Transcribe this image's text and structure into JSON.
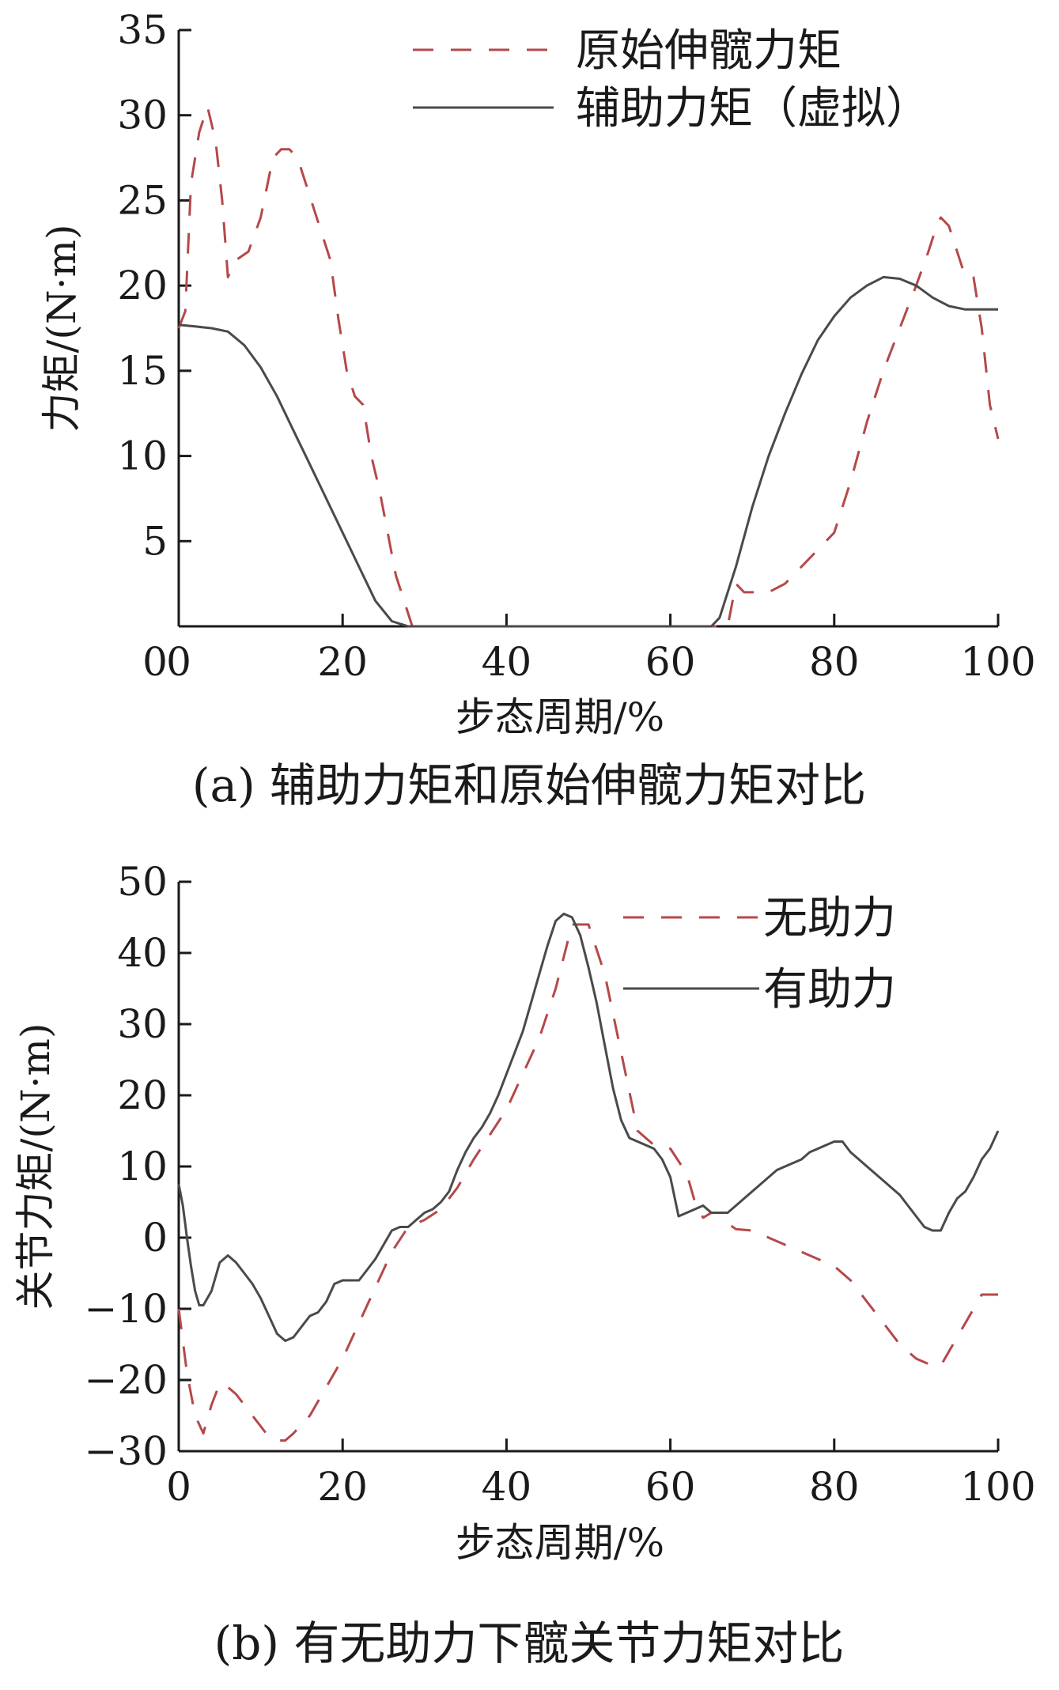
{
  "colors": {
    "dashed_series": "#b5484a",
    "solid_series": "#4a4a4a",
    "axis": "#1a1a1a"
  },
  "chart_data": [
    {
      "type": "line",
      "caption": "(a)  辅助力矩和原始伸髋力矩对比",
      "xlabel": "步态周期/%",
      "ylabel": "力矩/(N·m)",
      "xlim": [
        0,
        100
      ],
      "ylim": [
        0,
        35
      ],
      "xticks": [
        0,
        20,
        40,
        60,
        80,
        100
      ],
      "yticks": [
        5,
        10,
        15,
        20,
        25,
        30,
        35
      ],
      "legend": "top-right",
      "series": [
        {
          "name": "原始伸髋力矩",
          "style": "dashed",
          "x": [
            0,
            0.8,
            1.5,
            2.5,
            3.5,
            4.5,
            5.3,
            6,
            7,
            8.5,
            10,
            11.5,
            12.5,
            13.5,
            14.5,
            15.5,
            16.5,
            17.5,
            18.5,
            19.5,
            20.5,
            21.5,
            22.5,
            23.5,
            24.5,
            25.5,
            26.5,
            27.5,
            28.5,
            30,
            40,
            50,
            60,
            66,
            67,
            68,
            69,
            70,
            71,
            72,
            74,
            76,
            78,
            80,
            82,
            84,
            86,
            88,
            90,
            91.5,
            92.5,
            93,
            94,
            95,
            96,
            97,
            98,
            99,
            100
          ],
          "y": [
            17.5,
            18.5,
            26,
            29,
            30.5,
            28.5,
            25,
            20.5,
            21.5,
            22,
            24,
            27.5,
            28,
            28,
            27.5,
            26,
            24.5,
            23,
            21.5,
            18,
            15,
            13.5,
            13,
            10,
            8,
            5.5,
            3,
            1.5,
            0,
            0,
            0,
            0,
            0,
            0,
            0,
            2.5,
            2,
            2,
            2,
            2,
            2.5,
            3.5,
            4.5,
            5.5,
            8.5,
            12,
            15,
            17.5,
            20,
            22,
            23.5,
            24,
            23.5,
            22,
            20.5,
            20.5,
            17.5,
            13,
            11
          ]
        },
        {
          "name": "辅助力矩（虚拟）",
          "style": "solid",
          "x": [
            0,
            2,
            4,
            6,
            8,
            10,
            12,
            14,
            16,
            18,
            20,
            22,
            24,
            26,
            28,
            28.5,
            30,
            40,
            50,
            60,
            65,
            66,
            68,
            70,
            72,
            74,
            76,
            78,
            80,
            82,
            84,
            86,
            88,
            90,
            92,
            94,
            96,
            98,
            100
          ],
          "y": [
            17.7,
            17.6,
            17.5,
            17.3,
            16.5,
            15.2,
            13.5,
            11.5,
            9.5,
            7.5,
            5.5,
            3.5,
            1.5,
            0.3,
            0,
            0,
            0,
            0,
            0,
            0,
            0,
            0.5,
            3.5,
            7,
            10,
            12.5,
            14.8,
            16.8,
            18.2,
            19.3,
            20,
            20.5,
            20.4,
            20,
            19.3,
            18.8,
            18.6,
            18.6,
            18.6
          ]
        }
      ]
    },
    {
      "type": "line",
      "caption": "(b)  有无助力下髋关节力矩对比",
      "xlabel": "步态周期/%",
      "ylabel": "关节力矩/(N·m)",
      "xlim": [
        0,
        100
      ],
      "ylim": [
        -30,
        50
      ],
      "xticks": [
        0,
        20,
        40,
        60,
        80,
        100
      ],
      "yticks": [
        -30,
        -20,
        -10,
        0,
        10,
        20,
        30,
        40,
        50
      ],
      "legend": "top-right",
      "series": [
        {
          "name": "无助力",
          "style": "dashed",
          "x": [
            0,
            1,
            2,
            3,
            4,
            5,
            6,
            7,
            8,
            9,
            10,
            11,
            12,
            13,
            14,
            16,
            18,
            20,
            22,
            24,
            26,
            28,
            30,
            32,
            34,
            36,
            38,
            40,
            42,
            44,
            46,
            48,
            50,
            52,
            54,
            56,
            58,
            60,
            62,
            63,
            64,
            65,
            66,
            67,
            68,
            70,
            72,
            74,
            76,
            78,
            80,
            82,
            84,
            86,
            88,
            90,
            92,
            93,
            94,
            96,
            98,
            100
          ],
          "y": [
            -10,
            -19,
            -25,
            -27.5,
            -23.5,
            -20.5,
            -21,
            -22,
            -23.5,
            -25,
            -26.5,
            -28,
            -28.5,
            -28.5,
            -27.5,
            -25,
            -21,
            -17,
            -12,
            -7,
            -2,
            1.5,
            2.5,
            4,
            7,
            11,
            14.5,
            18,
            23,
            28,
            35,
            44,
            44,
            37,
            26,
            15,
            13,
            12.5,
            9,
            5,
            2.8,
            3.5,
            3.5,
            2,
            1.2,
            1,
            0,
            -1,
            -2,
            -3,
            -4,
            -6,
            -9,
            -12,
            -15,
            -17,
            -18,
            -18,
            -16,
            -12,
            -8,
            -8
          ]
        },
        {
          "name": "有助力",
          "style": "solid",
          "x": [
            0,
            0.5,
            1,
            1.5,
            2,
            2.5,
            3,
            4,
            5,
            6,
            7,
            8,
            9,
            10,
            11,
            12,
            13,
            14,
            15,
            16,
            17,
            18,
            19,
            20,
            21,
            22,
            23,
            24,
            25,
            26,
            27,
            28,
            29,
            30,
            31,
            32,
            33,
            34,
            35,
            36,
            37,
            38,
            39,
            40,
            41,
            42,
            43,
            44,
            45,
            46,
            47,
            48,
            49,
            50,
            51,
            52,
            53,
            54,
            55,
            56,
            57,
            58,
            59,
            60,
            61,
            62,
            63,
            64,
            65,
            66,
            67,
            68,
            69,
            70,
            71,
            72,
            73,
            74,
            75,
            76,
            77,
            78,
            79,
            80,
            81,
            82,
            83,
            84,
            85,
            86,
            87,
            88,
            89,
            90,
            91,
            92,
            93,
            94,
            95,
            96,
            97,
            98,
            99,
            100
          ],
          "y": [
            7.5,
            4.5,
            0,
            -4,
            -7.5,
            -9.5,
            -9.5,
            -7.5,
            -3.5,
            -2.5,
            -3.5,
            -5,
            -6.5,
            -8.5,
            -11,
            -13.5,
            -14.5,
            -14,
            -12.5,
            -11,
            -10.5,
            -9,
            -6.5,
            -6,
            -6,
            -6,
            -4.5,
            -3,
            -1,
            1,
            1.5,
            1.5,
            2.5,
            3.5,
            4,
            5,
            6.5,
            9.5,
            12,
            14,
            15.5,
            17.5,
            20,
            23,
            26,
            29,
            33,
            37,
            41,
            44.5,
            45.5,
            45,
            42.5,
            38,
            33,
            27,
            21,
            16.5,
            14,
            13.5,
            13,
            12.5,
            11,
            8.5,
            3,
            3.5,
            4,
            4.5,
            3.5,
            3.5,
            3.5,
            4.5,
            5.5,
            6.5,
            7.5,
            8.5,
            9.5,
            10,
            10.5,
            11,
            12,
            12.5,
            13,
            13.5,
            13.5,
            12,
            11,
            10,
            9,
            8,
            7,
            6,
            4.5,
            3,
            1.5,
            1,
            1,
            3.5,
            5.5,
            6.5,
            8.5,
            11,
            12.5,
            15
          ]
        }
      ]
    }
  ]
}
